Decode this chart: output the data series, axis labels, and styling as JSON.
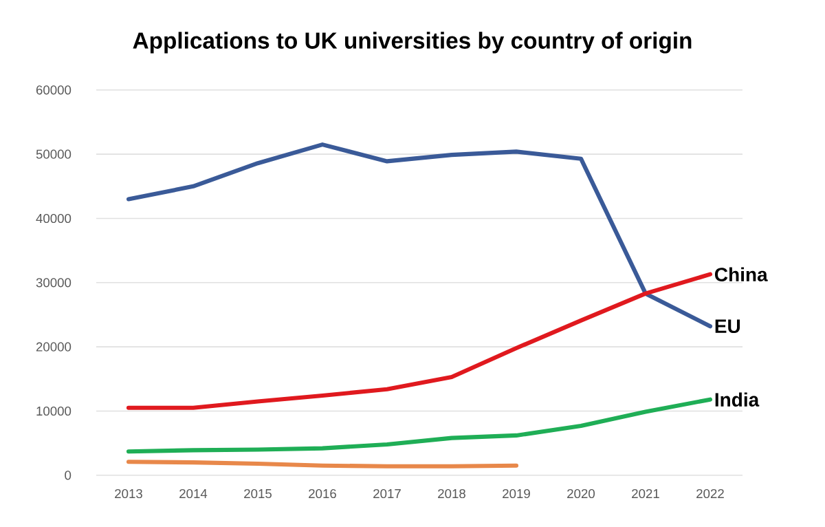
{
  "chart_data": {
    "type": "line",
    "title": "Applications to UK universities by country of origin",
    "categories": [
      "2013",
      "2014",
      "2015",
      "2016",
      "2017",
      "2018",
      "2019",
      "2020",
      "2021",
      "2022"
    ],
    "series": [
      {
        "name": "EU",
        "color": "#3a5a98",
        "values": [
          43000,
          45000,
          48600,
          51500,
          48900,
          49900,
          50400,
          49300,
          28300,
          23200
        ]
      },
      {
        "name": "China",
        "color": "#e0191e",
        "values": [
          10500,
          10500,
          11500,
          12400,
          13400,
          15300,
          19800,
          24100,
          28300,
          31300
        ]
      },
      {
        "name": "India",
        "color": "#1fae56",
        "values": [
          3700,
          3900,
          4000,
          4200,
          4800,
          5800,
          6200,
          7700,
          9900,
          11800
        ]
      },
      {
        "color": "#e8884a",
        "values": [
          2100,
          2000,
          1800,
          1500,
          1400,
          1400,
          1500,
          null,
          null,
          null
        ]
      }
    ],
    "ylim": [
      0,
      60000
    ],
    "yticks": [
      0,
      10000,
      20000,
      30000,
      40000,
      50000,
      60000
    ],
    "grid": "y"
  }
}
